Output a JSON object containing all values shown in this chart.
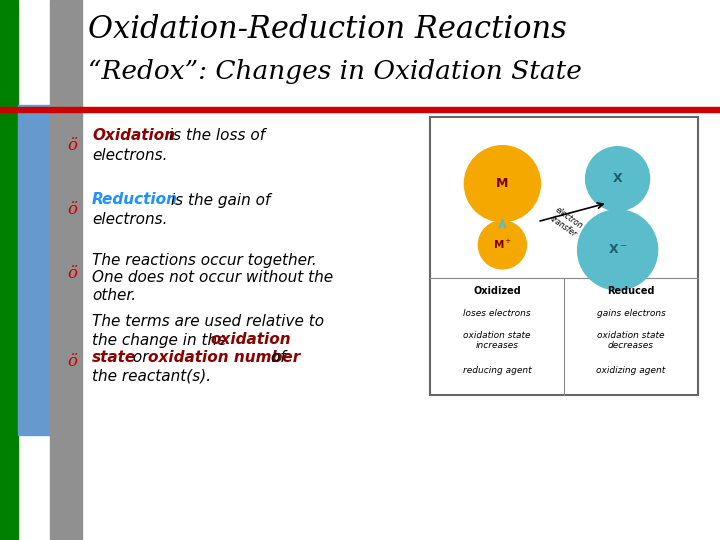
{
  "title_line1": "Oxidation-Reduction Reactions",
  "title_line2": "“Redox”: Changes in Oxidation State",
  "bg_color": "#ffffff",
  "sidebar_green": "#008000",
  "sidebar_blue": "#6699cc",
  "sidebar_gray": "#909090",
  "header_underline_color": "#cc0000",
  "bullet_color": "#cc0000",
  "bullet_char": "ö",
  "orange_color": "#f5a800",
  "teal_color": "#5bbccc",
  "dark_red": "#8b0000",
  "blue_reduction": "#1e90ff",
  "fontsize_title1": 22,
  "fontsize_title2": 19,
  "fontsize_bullet": 11,
  "fontsize_diagram": 7
}
